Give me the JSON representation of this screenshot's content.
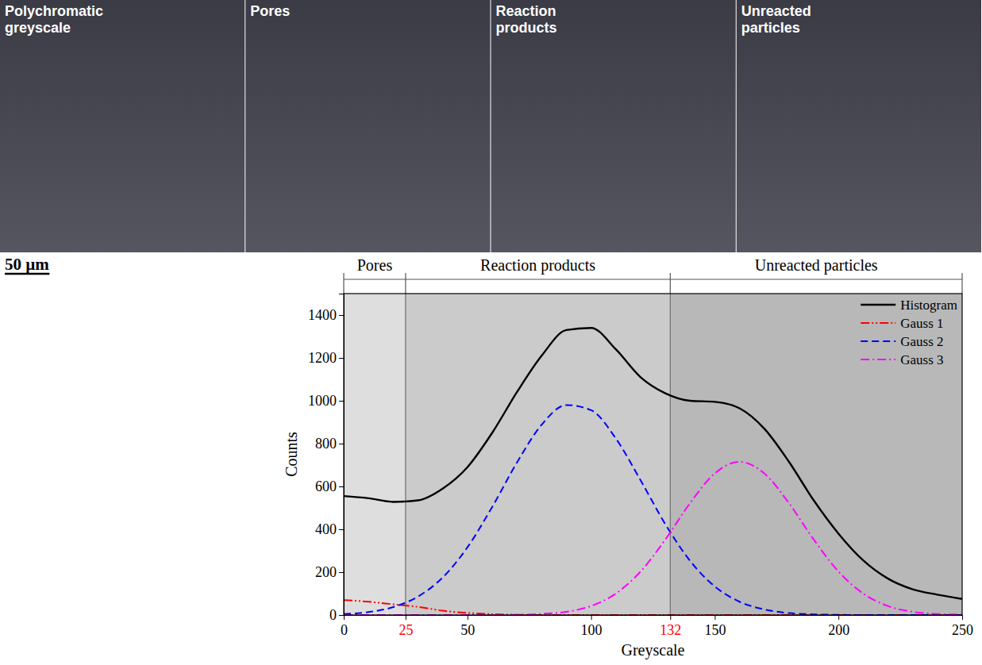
{
  "panels": [
    {
      "title": "Polychromatic greyscale"
    },
    {
      "title": "Pores"
    },
    {
      "title": "Reaction products"
    },
    {
      "title": "Unreacted particles"
    }
  ],
  "scale_bar": "50 µm",
  "chart_data": {
    "type": "line",
    "x_label": "Greyscale",
    "y_label": "Counts",
    "x": [
      0,
      10,
      20,
      30,
      40,
      50,
      60,
      70,
      80,
      90,
      100,
      110,
      120,
      130,
      140,
      150,
      160,
      170,
      180,
      190,
      200,
      210,
      220,
      230,
      240,
      250
    ],
    "series": [
      {
        "name": "Histogram",
        "color": "#000000",
        "line_style": "solid",
        "values": [
          555,
          545,
          528,
          535,
          590,
          690,
          850,
          1040,
          1210,
          1330,
          1340,
          1240,
          1110,
          1035,
          1000,
          995,
          965,
          870,
          715,
          535,
          380,
          255,
          170,
          120,
          95,
          75
        ]
      },
      {
        "name": "Gauss 1",
        "color": "#ff0000",
        "line_style": "dash-dot-dot",
        "values": [
          70,
          62,
          50,
          38,
          20,
          10,
          4,
          1,
          0,
          0,
          0,
          0,
          0,
          0,
          0,
          0,
          0,
          0,
          0,
          0,
          0,
          0,
          0,
          0,
          0,
          0
        ]
      },
      {
        "name": "Gauss 2",
        "color": "#0000ff",
        "line_style": "dashed",
        "values": [
          5,
          14,
          37,
          86,
          175,
          316,
          504,
          711,
          888,
          980,
          956,
          824,
          629,
          424,
          253,
          133,
          62,
          26,
          9,
          3,
          1,
          0,
          0,
          0,
          0,
          0
        ]
      },
      {
        "name": "Gauss 3",
        "color": "#ff00ff",
        "line_style": "dash-dot",
        "values": [
          0,
          0,
          0,
          0,
          0,
          0,
          0,
          1,
          5,
          15,
          42,
          100,
          203,
          352,
          522,
          661,
          715,
          661,
          522,
          352,
          203,
          100,
          42,
          15,
          5,
          2
        ]
      }
    ],
    "xlim": [
      0,
      250
    ],
    "ylim": [
      0,
      1500
    ],
    "xticks": [
      0,
      25,
      50,
      100,
      132,
      150,
      200,
      250
    ],
    "yticks": [
      0,
      200,
      400,
      600,
      800,
      1000,
      1200,
      1400
    ],
    "thresholds": [
      25,
      132
    ],
    "regions": [
      {
        "label": "Pores",
        "from": 0,
        "to": 25,
        "color": "#dedede"
      },
      {
        "label": "Reaction products",
        "from": 25,
        "to": 132,
        "color": "#cbcbcb"
      },
      {
        "label": "Unreacted particles",
        "from": 132,
        "to": 250,
        "color": "#b8b8b8"
      }
    ],
    "legend": "upper right"
  }
}
